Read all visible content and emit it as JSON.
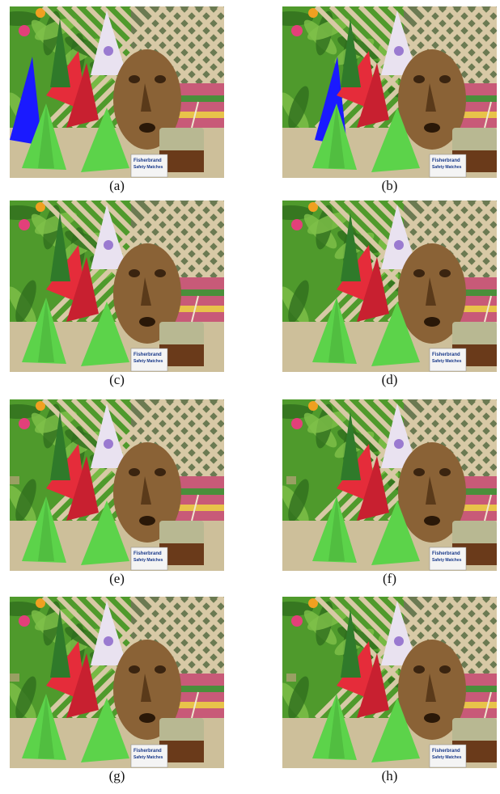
{
  "panels": [
    {
      "id": "a",
      "caption": "(a)",
      "view": "left"
    },
    {
      "id": "b",
      "caption": "(b)",
      "view": "right"
    },
    {
      "id": "c",
      "caption": "(c)",
      "view": "left"
    },
    {
      "id": "d",
      "caption": "(d)",
      "view": "right"
    },
    {
      "id": "e",
      "caption": "(e)",
      "view": "left"
    },
    {
      "id": "f",
      "caption": "(f)",
      "view": "right"
    },
    {
      "id": "g",
      "caption": "(g)",
      "view": "left"
    },
    {
      "id": "h",
      "caption": "(h)",
      "view": "right"
    }
  ],
  "colors": {
    "leaf_green": "#4f9a2c",
    "lattice": "#d8c9a6",
    "cone_green": "#5cd34a",
    "cone_red": "#e52c3a",
    "cone_blue": "#1a1aff",
    "mask": "#8a6236",
    "table": "#cdbf9a"
  },
  "sign_text": {
    "brand": "Fisherbrand",
    "product": "Safety Matches"
  }
}
